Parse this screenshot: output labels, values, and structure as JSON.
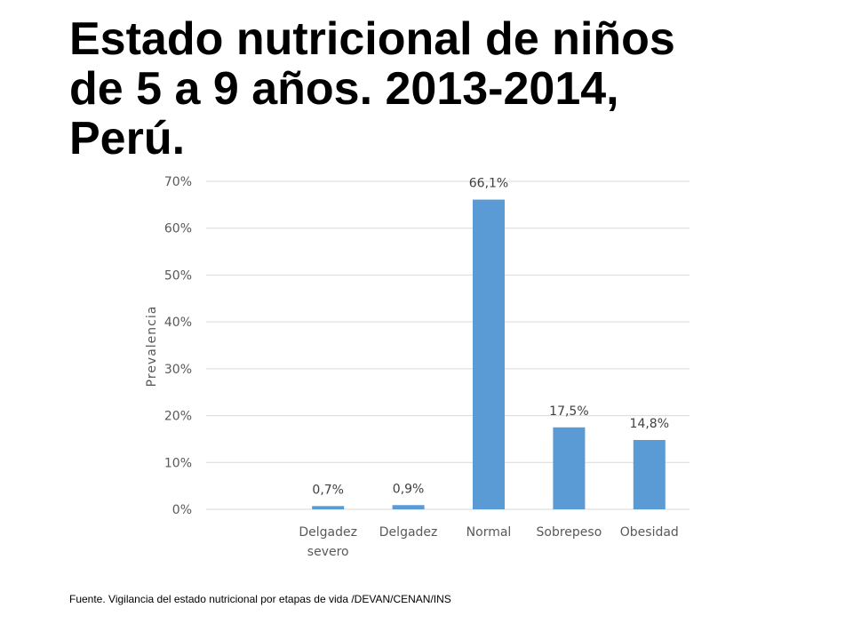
{
  "slide": {
    "title_lines": [
      "Estado nutricional de niños",
      "de 5 a 9 años. 2013-2014,",
      "Perú."
    ],
    "source": "Fuente. Vigilancia del estado nutricional por etapas de vida /DEVAN/CENAN/INS"
  },
  "colors": {
    "bar": "#5b9bd5",
    "grid": "#d9d9d9",
    "text": "#595959"
  },
  "chart_data": {
    "type": "bar",
    "title": "",
    "xlabel": "",
    "ylabel": "Prevalencia",
    "categories": [
      [
        "Delgadez",
        "severo"
      ],
      [
        "Delgadez"
      ],
      [
        "Normal"
      ],
      [
        "Sobrepeso"
      ],
      [
        "Obesidad"
      ]
    ],
    "values": [
      0.7,
      0.9,
      66.1,
      17.5,
      14.8
    ],
    "value_labels": [
      "0,7%",
      "0,9%",
      "66,1%",
      "17,5%",
      "14,8%"
    ],
    "ylim": [
      0,
      70
    ],
    "yticks": [
      0,
      10,
      20,
      30,
      40,
      50,
      60,
      70
    ],
    "ytick_labels": [
      "0%",
      "10%",
      "20%",
      "30%",
      "40%",
      "50%",
      "60%",
      "70%"
    ],
    "grid": true,
    "legend": "none"
  }
}
